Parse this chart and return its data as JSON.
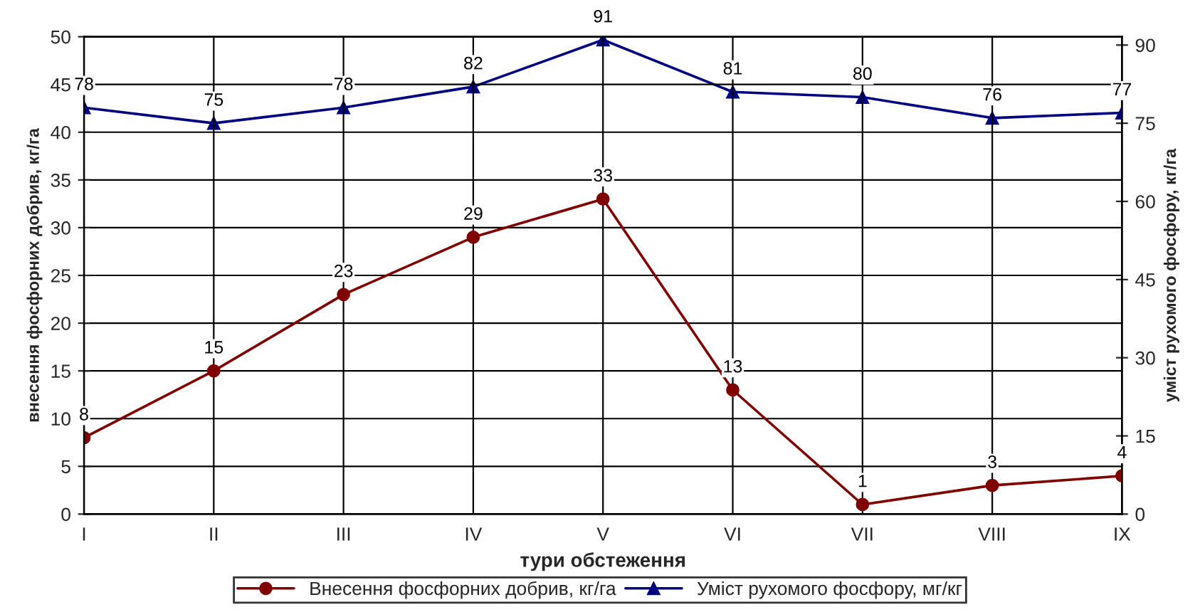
{
  "chart_data": {
    "type": "line",
    "xlabel": "тури обстеження",
    "ylabel": "внесення фосфорних добрив, кг/га",
    "y2label": "уміст рухомого фосфору, кг/га",
    "categories": [
      "I",
      "II",
      "III",
      "IV",
      "V",
      "VI",
      "VII",
      "VIII",
      "IX"
    ],
    "series": [
      {
        "name": "Внесення фосфорних добрив, кг/га",
        "color": "#800000",
        "marker": "circle",
        "values": [
          8,
          15,
          23,
          29,
          33,
          13,
          1,
          3,
          4
        ]
      },
      {
        "name": "Уміст рухомого фосфору, мг/кг",
        "color": "#000080",
        "marker": "triangle",
        "axis": "y2",
        "values": [
          78,
          75,
          78,
          82,
          91,
          81,
          80,
          76,
          77
        ]
      }
    ],
    "ylim": [
      0,
      50
    ],
    "yticks": [
      0,
      5,
      10,
      15,
      20,
      25,
      30,
      35,
      40,
      45,
      50
    ],
    "y2lim": [
      0,
      91.6
    ],
    "y2ticks": [
      0,
      15,
      30,
      45,
      60,
      75,
      90
    ],
    "data_labels": true,
    "grid": true,
    "legend": "bottom",
    "line_style": "solid"
  }
}
